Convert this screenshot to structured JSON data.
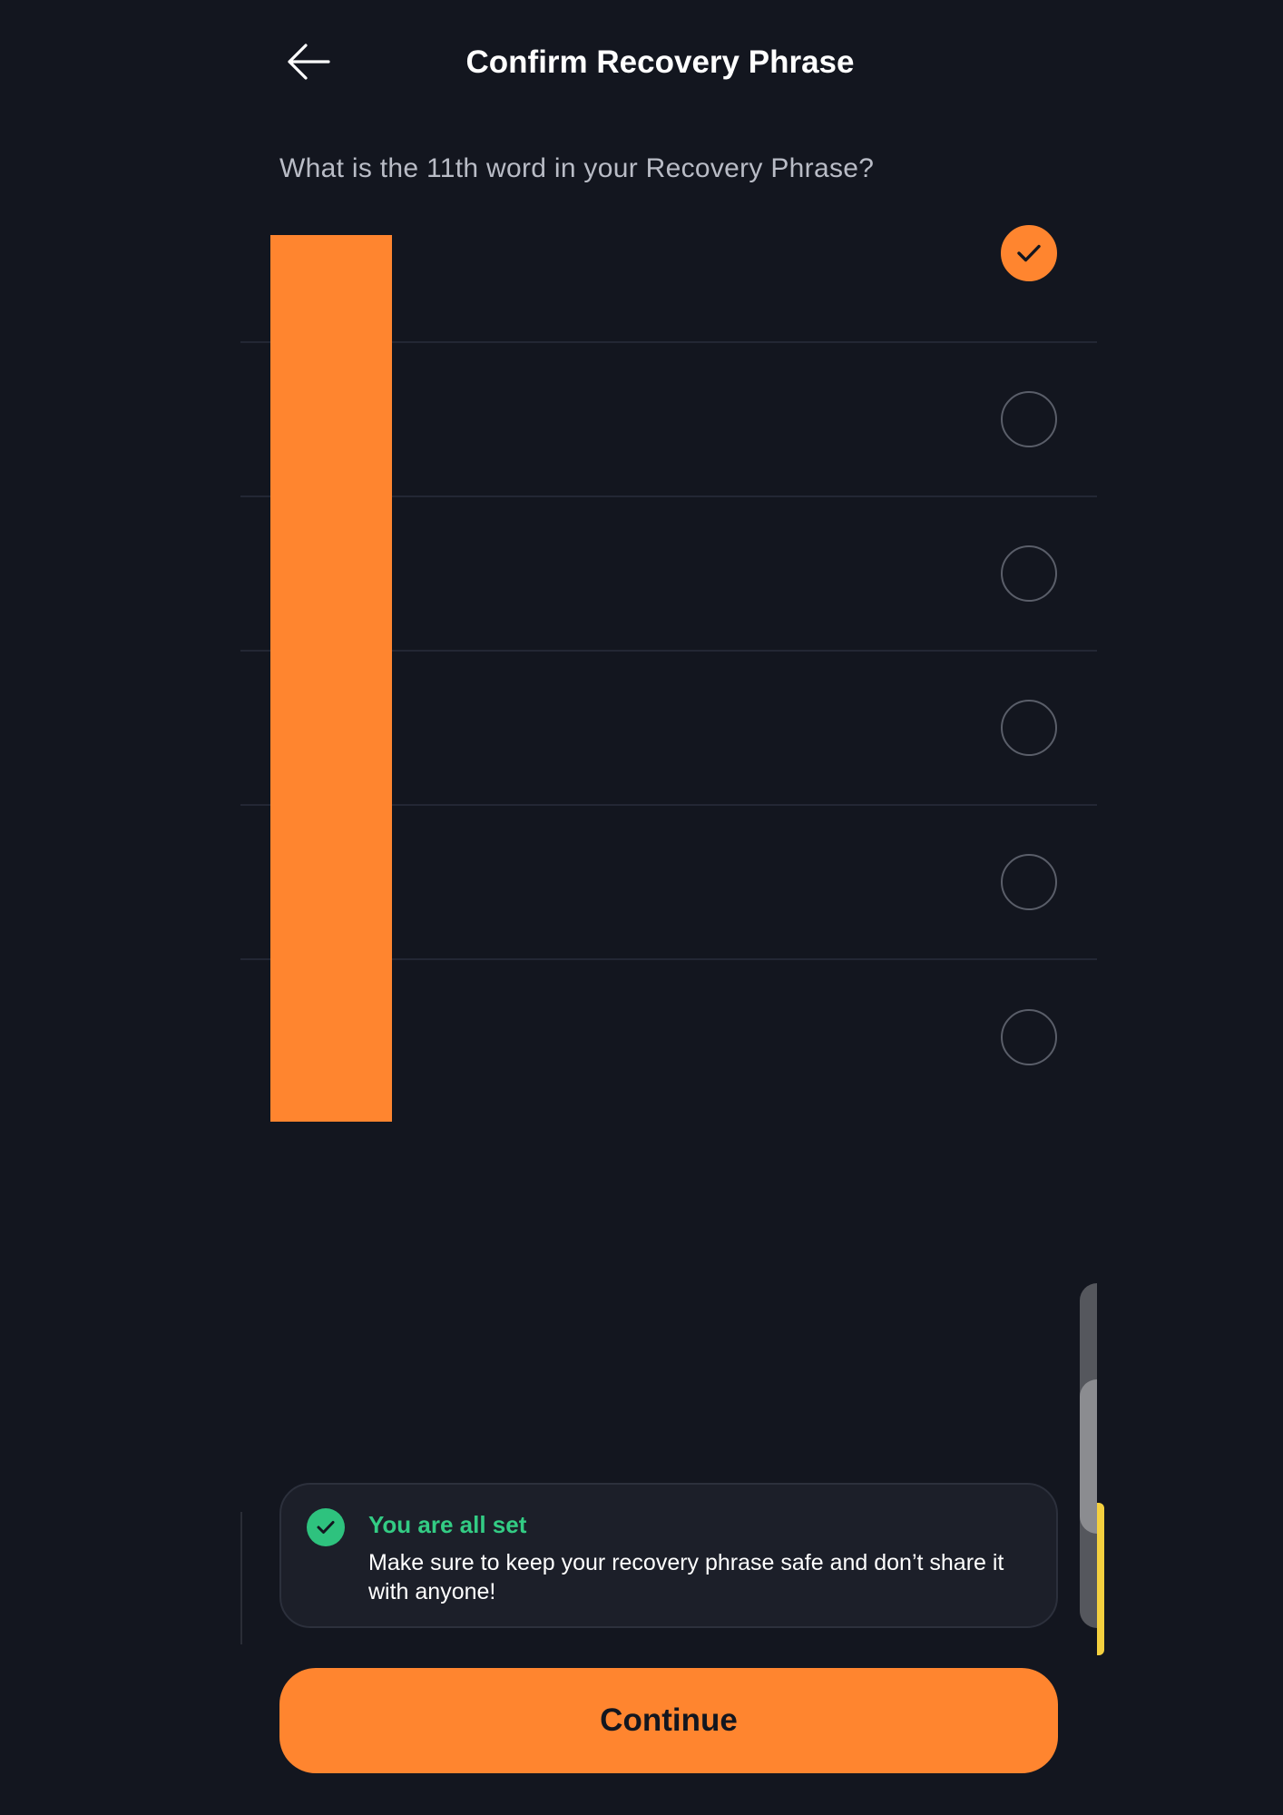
{
  "header": {
    "back_icon": "arrow-left-icon",
    "title": "Confirm Recovery Phrase"
  },
  "question": "What is the 11th word in your Recovery Phrase?",
  "options": [
    {
      "label": "",
      "selected": true
    },
    {
      "label": "",
      "selected": false
    },
    {
      "label": "",
      "selected": false
    },
    {
      "label": "",
      "selected": false
    },
    {
      "label": "",
      "selected": false
    },
    {
      "label": "",
      "selected": false
    }
  ],
  "toast": {
    "icon": "check-circle-icon",
    "title": "You are all set",
    "body": "Make sure to keep your recovery phrase safe and don’t share it with anyone!"
  },
  "continue_label": "Continue",
  "colors": {
    "background": "#13161f",
    "accent": "#ff852f",
    "success": "#2ec27e",
    "text_secondary": "#b9bcc6"
  }
}
